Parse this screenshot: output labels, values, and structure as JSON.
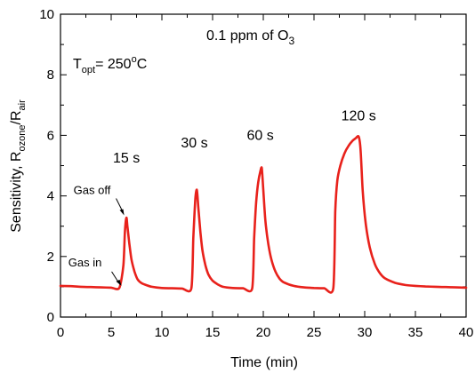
{
  "chart_data": {
    "type": "line",
    "title": "",
    "xlabel": "Time (min)",
    "ylabel": "Sensitivity, R",
    "ylabel_sub1": "ozone",
    "ylabel_mid": "/R",
    "ylabel_sub2": "air",
    "xlim": [
      0,
      40
    ],
    "ylim": [
      0,
      10
    ],
    "xticks": [
      "0",
      "5",
      "10",
      "15",
      "20",
      "25",
      "30",
      "35",
      "40"
    ],
    "yticks": [
      "0",
      "2",
      "4",
      "6",
      "8",
      "10"
    ],
    "grid": false,
    "legend": "none",
    "series": [
      {
        "color": "#e8211b",
        "x": [
          0,
          1,
          2,
          3,
          4,
          5,
          5.8,
          6.2,
          6.35,
          6.5,
          6.6,
          6.8,
          7,
          7.3,
          7.6,
          8,
          8.5,
          9,
          10,
          11,
          12,
          12.9,
          13.1,
          13.3,
          13.45,
          13.6,
          13.8,
          14,
          14.3,
          14.6,
          15,
          15.5,
          16,
          17,
          18,
          18.9,
          19.1,
          19.3,
          19.5,
          19.7,
          19.85,
          20,
          20.2,
          20.5,
          20.8,
          21.2,
          21.6,
          22,
          23,
          24,
          25,
          26,
          26.9,
          27.1,
          27.3,
          27.6,
          28,
          28.4,
          28.8,
          29.1,
          29.4,
          29.6,
          29.8,
          30.1,
          30.5,
          31,
          31.5,
          32,
          33,
          34,
          35,
          36,
          37,
          38,
          39,
          40
        ],
        "y": [
          1.03,
          1.02,
          1.0,
          0.99,
          0.98,
          0.97,
          0.96,
          1.7,
          2.8,
          3.28,
          3.0,
          2.4,
          1.9,
          1.5,
          1.25,
          1.12,
          1.05,
          1.0,
          0.96,
          0.95,
          0.94,
          0.94,
          2.6,
          3.9,
          4.2,
          3.6,
          2.8,
          2.2,
          1.7,
          1.4,
          1.2,
          1.08,
          1.0,
          0.96,
          0.95,
          0.94,
          2.6,
          3.8,
          4.45,
          4.8,
          4.92,
          4.2,
          3.2,
          2.4,
          1.9,
          1.5,
          1.27,
          1.15,
          1.03,
          0.98,
          0.96,
          0.95,
          0.95,
          3.5,
          4.5,
          5.0,
          5.4,
          5.65,
          5.82,
          5.9,
          5.96,
          5.5,
          4.2,
          3.1,
          2.3,
          1.75,
          1.45,
          1.28,
          1.13,
          1.06,
          1.03,
          1.01,
          1.0,
          0.99,
          0.98,
          0.97
        ]
      }
    ],
    "annotations": {
      "concentration": "0.1 ppm of O",
      "concentration_sub": "3",
      "temp_main": "T",
      "temp_sub": "opt",
      "temp_value": "= 250",
      "temp_sup": "o",
      "temp_unit": "C",
      "pulses": [
        {
          "label": "15 s",
          "x": 6.5,
          "y": 5.1
        },
        {
          "label": "30 s",
          "x": 13.2,
          "y": 5.6
        },
        {
          "label": "60 s",
          "x": 19.7,
          "y": 5.85
        },
        {
          "label": "120 s",
          "x": 29.4,
          "y": 6.5
        }
      ],
      "gas_off": {
        "label": "Gas off",
        "x": 6.45,
        "y": 3.3
      },
      "gas_in": {
        "label": "Gas in",
        "x": 6.1,
        "y": 1.0
      }
    }
  }
}
